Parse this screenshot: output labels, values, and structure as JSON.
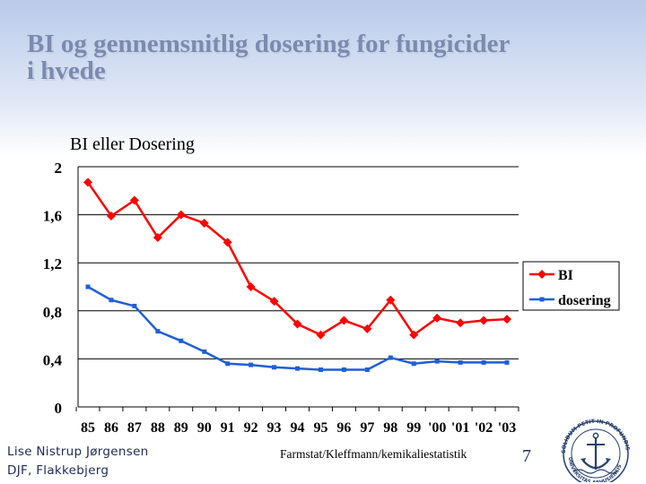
{
  "title": {
    "line1": "BI og gennemsnitlig dosering for fungicider",
    "line2": "i hvede"
  },
  "footer": {
    "author": "Lise Nistrup Jørgensen",
    "affiliation": "DJF, Flakkebjerg",
    "source": "Farmstat/Kleffmann/kemikaliestatistik",
    "page_number": "7"
  },
  "logo": {
    "text": "UNIVERSITAS ARHUSIENSIS SOLIDUM PETIT IN PROFUNDIS"
  },
  "colors": {
    "bi": "#ff0000",
    "dosering": "#1f5fd6",
    "title": "#7b8ab0"
  },
  "chart_data": {
    "type": "line",
    "title": "BI eller Dosering",
    "xlabel": "",
    "ylabel": "",
    "categories": [
      "85",
      "86",
      "87",
      "88",
      "89",
      "90",
      "91",
      "92",
      "93",
      "94",
      "95",
      "96",
      "97",
      "98",
      "99",
      "'00",
      "'01",
      "'02",
      "'03"
    ],
    "series": [
      {
        "name": "BI",
        "marker": "diamond",
        "values": [
          1.87,
          1.59,
          1.72,
          1.41,
          1.6,
          1.53,
          1.37,
          1.0,
          0.88,
          0.69,
          0.6,
          0.72,
          0.65,
          0.89,
          0.6,
          0.74,
          0.7,
          0.72,
          0.73
        ]
      },
      {
        "name": "dosering",
        "marker": "square",
        "values": [
          1.0,
          0.89,
          0.84,
          0.63,
          0.55,
          0.46,
          0.36,
          0.35,
          0.33,
          0.32,
          0.31,
          0.31,
          0.31,
          0.41,
          0.36,
          0.38,
          0.37,
          0.37,
          0.37
        ]
      }
    ],
    "ylim": [
      0,
      2
    ],
    "yticks": [
      0,
      0.4,
      0.8,
      1.2,
      1.6,
      2
    ],
    "ytick_labels": [
      "0",
      "0,4",
      "0,8",
      "1,2",
      "1,6",
      "2"
    ],
    "grid": true,
    "legend_position": "right"
  }
}
